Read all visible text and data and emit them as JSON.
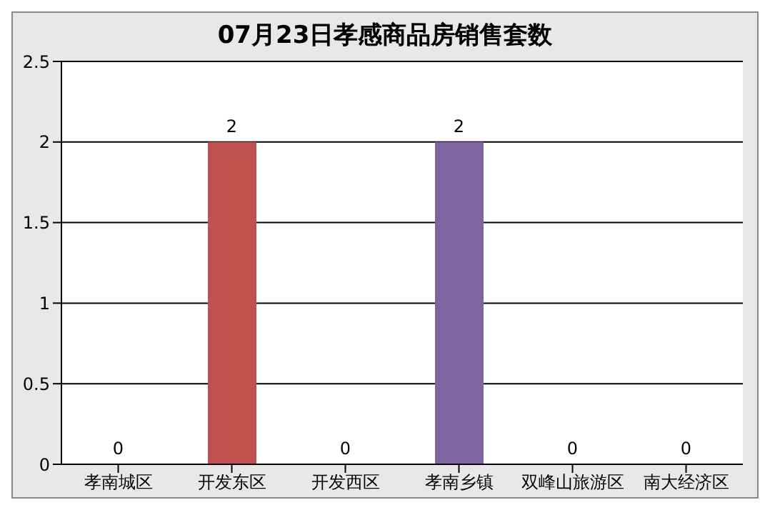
{
  "chart_data": {
    "type": "bar",
    "title": "07月23日孝感商品房销售套数",
    "categories": [
      "孝南城区",
      "开发东区",
      "开发西区",
      "孝南乡镇",
      "双峰山旅游区",
      "南大经济区"
    ],
    "values": [
      0,
      2,
      0,
      2,
      0,
      0
    ],
    "colors": [
      "#4f81bd",
      "#c0504d",
      "#9bbb59",
      "#8064a2",
      "#4bacc6",
      "#f79646"
    ],
    "ylim": [
      0,
      2.5
    ],
    "yticks": [
      0,
      0.5,
      1,
      1.5,
      2,
      2.5
    ],
    "grid": "y",
    "data_labels": true
  }
}
